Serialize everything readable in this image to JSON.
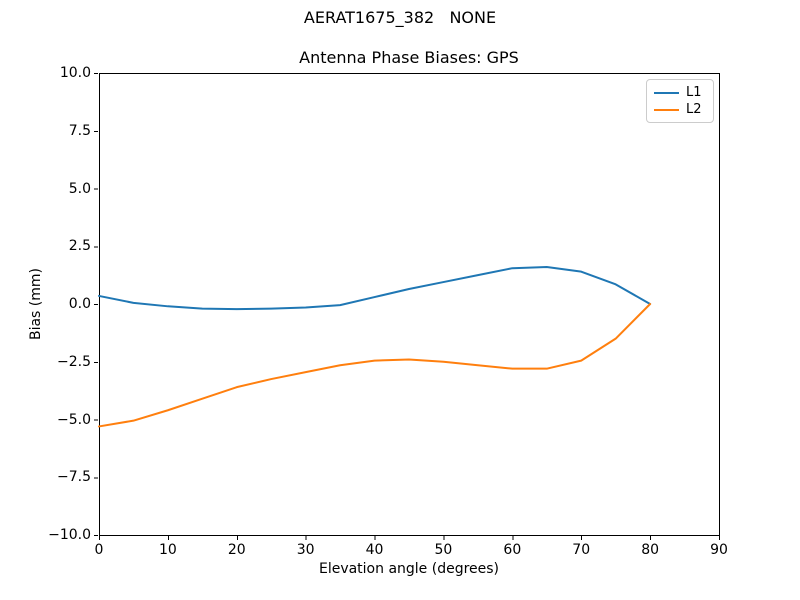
{
  "figure": {
    "background": "#ffffff",
    "axis_color": "#000000",
    "plot_background": "#ffffff"
  },
  "chart_data": {
    "type": "line",
    "suptitle": "AERAT1675_382   NONE",
    "title": "Antenna Phase Biases: GPS",
    "xlabel": "Elevation angle (degrees)",
    "ylabel": "Bias (mm)",
    "xlim": [
      0,
      90
    ],
    "ylim": [
      -10,
      10
    ],
    "grid": false,
    "legend_position": "upper right",
    "xticks": [
      {
        "value": 0,
        "label": "0"
      },
      {
        "value": 10,
        "label": "10"
      },
      {
        "value": 20,
        "label": "20"
      },
      {
        "value": 30,
        "label": "30"
      },
      {
        "value": 40,
        "label": "40"
      },
      {
        "value": 50,
        "label": "50"
      },
      {
        "value": 60,
        "label": "60"
      },
      {
        "value": 70,
        "label": "70"
      },
      {
        "value": 80,
        "label": "80"
      },
      {
        "value": 90,
        "label": "90"
      }
    ],
    "yticks": [
      {
        "value": 10.0,
        "label": "10.0"
      },
      {
        "value": 7.5,
        "label": "7.5"
      },
      {
        "value": 5.0,
        "label": "5.0"
      },
      {
        "value": 2.5,
        "label": "2.5"
      },
      {
        "value": 0.0,
        "label": "0.0"
      },
      {
        "value": -2.5,
        "label": "−2.5"
      },
      {
        "value": -5.0,
        "label": "−5.0"
      },
      {
        "value": -7.5,
        "label": "−7.5"
      },
      {
        "value": -10.0,
        "label": "−10.0"
      }
    ],
    "x": [
      0,
      5,
      10,
      15,
      20,
      25,
      30,
      35,
      40,
      45,
      50,
      55,
      60,
      65,
      70,
      75,
      80
    ],
    "series": [
      {
        "name": "L1",
        "color": "#1f77b4",
        "values": [
          0.35,
          0.05,
          -0.1,
          -0.2,
          -0.22,
          -0.2,
          -0.15,
          -0.05,
          0.3,
          0.65,
          0.95,
          1.25,
          1.55,
          1.6,
          1.4,
          0.85,
          0.0
        ]
      },
      {
        "name": "L2",
        "color": "#ff7f0e",
        "values": [
          -5.3,
          -5.05,
          -4.6,
          -4.1,
          -3.6,
          -3.25,
          -2.95,
          -2.65,
          -2.45,
          -2.4,
          -2.5,
          -2.65,
          -2.8,
          -2.8,
          -2.45,
          -1.5,
          0.0
        ]
      }
    ]
  }
}
